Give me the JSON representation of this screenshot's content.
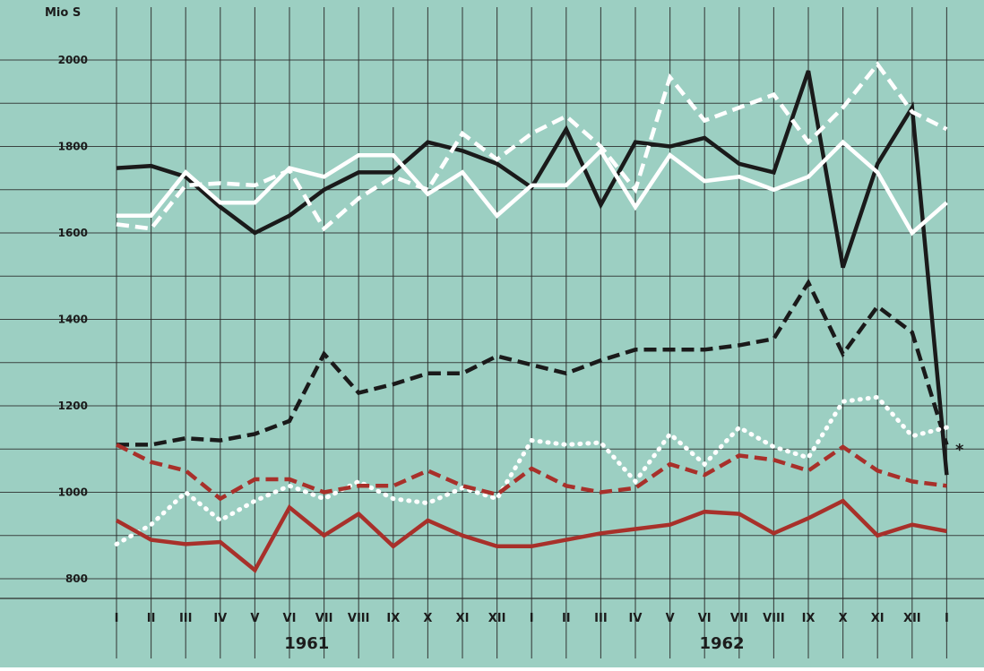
{
  "chart_data": {
    "type": "line",
    "ylabel": "Mio S",
    "ylim": [
      800,
      2000
    ],
    "yticks": [
      800,
      1000,
      1200,
      1400,
      1600,
      1800,
      2000
    ],
    "categories": [
      "I",
      "II",
      "III",
      "IV",
      "V",
      "VI",
      "VII",
      "VIII",
      "IX",
      "X",
      "XI",
      "XII",
      "I",
      "II",
      "III",
      "IV",
      "V",
      "VI",
      "VII",
      "VIII",
      "IX",
      "X",
      "XI",
      "XII",
      "I"
    ],
    "year_labels": [
      {
        "label": "1961",
        "at_index": 5.5
      },
      {
        "label": "1962",
        "at_index": 17.5
      }
    ],
    "annotation": "*",
    "grid": true,
    "background": "#9ccfc2",
    "series": [
      {
        "style": "solid",
        "color": "#1a1a1a",
        "values": [
          1750,
          1755,
          1730,
          1660,
          1600,
          1640,
          1700,
          1740,
          1740,
          1810,
          1790,
          1760,
          1705,
          1840,
          1665,
          1810,
          1800,
          1820,
          1760,
          1740,
          1975,
          1520,
          1760,
          1890,
          1040
        ]
      },
      {
        "style": "dashed",
        "color": "#ffffff",
        "values": [
          1620,
          1610,
          1710,
          1715,
          1710,
          1745,
          1610,
          1680,
          1730,
          1700,
          1830,
          1770,
          1830,
          1870,
          1800,
          1700,
          1960,
          1860,
          1890,
          1920,
          1810,
          1890,
          1990,
          1880,
          1840
        ]
      },
      {
        "style": "solid",
        "color": "#ffffff",
        "values": [
          1640,
          1640,
          1740,
          1670,
          1670,
          1750,
          1730,
          1780,
          1780,
          1690,
          1740,
          1640,
          1710,
          1710,
          1790,
          1660,
          1780,
          1720,
          1730,
          1700,
          1730,
          1810,
          1740,
          1600,
          1670
        ]
      },
      {
        "style": "dashed",
        "color": "#1a1a1a",
        "values": [
          1110,
          1110,
          1125,
          1120,
          1135,
          1165,
          1320,
          1230,
          1250,
          1275,
          1275,
          1315,
          1295,
          1275,
          1305,
          1330,
          1330,
          1330,
          1340,
          1355,
          1485,
          1320,
          1430,
          1370,
          1110
        ]
      },
      {
        "style": "dotted",
        "color": "#ffffff",
        "values": [
          880,
          925,
          1000,
          935,
          980,
          1015,
          985,
          1025,
          985,
          975,
          1010,
          985,
          1120,
          1110,
          1115,
          1025,
          1135,
          1065,
          1150,
          1105,
          1080,
          1210,
          1220,
          1130,
          1150
        ]
      },
      {
        "style": "dashed",
        "color": "#a8302a",
        "values": [
          1110,
          1070,
          1050,
          985,
          1030,
          1030,
          1000,
          1015,
          1015,
          1050,
          1015,
          995,
          1055,
          1015,
          1000,
          1010,
          1065,
          1040,
          1085,
          1075,
          1050,
          1105,
          1050,
          1025,
          1015
        ]
      },
      {
        "style": "solid",
        "color": "#a8302a",
        "values": [
          935,
          890,
          880,
          885,
          820,
          965,
          900,
          950,
          875,
          935,
          900,
          875,
          875,
          890,
          905,
          915,
          925,
          955,
          950,
          905,
          940,
          980,
          900,
          925,
          910
        ]
      }
    ]
  }
}
